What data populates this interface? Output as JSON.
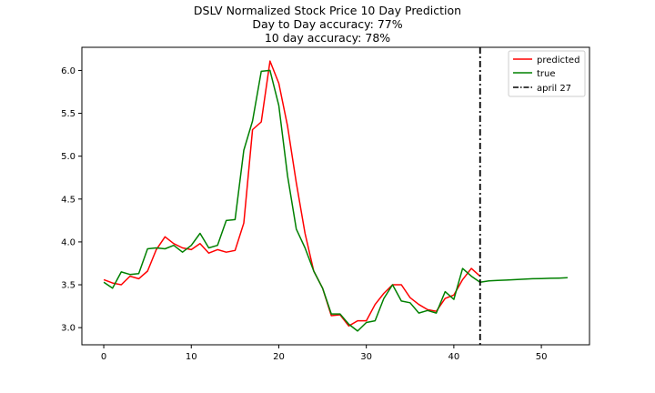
{
  "chart_data": {
    "type": "line",
    "title_lines": [
      "DSLV Normalized Stock Price 10 Day Prediction",
      "Day to Day accuracy: 77%",
      "10 day accuracy: 78%"
    ],
    "xlim": [
      -2.5,
      55.5
    ],
    "ylim": [
      2.8,
      6.27
    ],
    "x_ticks": [
      0,
      10,
      20,
      30,
      40,
      50
    ],
    "y_ticks": [
      3.0,
      3.5,
      4.0,
      4.5,
      5.0,
      5.5,
      6.0
    ],
    "y_tick_labels": [
      "3.0",
      "3.5",
      "4.0",
      "4.5",
      "5.0",
      "5.5",
      "6.0"
    ],
    "grid": false,
    "legend_position": "top-right",
    "series": [
      {
        "name": "predicted",
        "color": "#ff0000",
        "style": "solid",
        "x": [
          0,
          1,
          2,
          3,
          4,
          5,
          6,
          7,
          8,
          9,
          10,
          11,
          12,
          13,
          14,
          15,
          16,
          17,
          18,
          19,
          20,
          21,
          22,
          23,
          24,
          25,
          26,
          27,
          28,
          29,
          30,
          31,
          32,
          33,
          34,
          35,
          36,
          37,
          38,
          39,
          40,
          41,
          42,
          43
        ],
        "y": [
          3.56,
          3.52,
          3.5,
          3.6,
          3.57,
          3.66,
          3.91,
          4.06,
          3.98,
          3.93,
          3.91,
          3.98,
          3.87,
          3.91,
          3.88,
          3.9,
          4.22,
          5.31,
          5.4,
          6.11,
          5.85,
          5.35,
          4.69,
          4.1,
          3.66,
          3.46,
          3.14,
          3.15,
          3.02,
          3.08,
          3.08,
          3.27,
          3.4,
          3.5,
          3.5,
          3.35,
          3.27,
          3.21,
          3.19,
          3.34,
          3.38,
          3.56,
          3.69,
          3.6
        ]
      },
      {
        "name": "true",
        "color": "#008000",
        "style": "solid",
        "x": [
          0,
          1,
          2,
          3,
          4,
          5,
          6,
          7,
          8,
          9,
          10,
          11,
          12,
          13,
          14,
          15,
          16,
          17,
          18,
          19,
          20,
          21,
          22,
          23,
          24,
          25,
          26,
          27,
          28,
          29,
          30,
          31,
          32,
          33,
          34,
          35,
          36,
          37,
          38,
          39,
          40,
          41,
          42,
          43,
          44,
          45,
          46,
          47,
          48,
          49,
          50,
          51,
          52,
          53
        ],
        "y": [
          3.53,
          3.46,
          3.65,
          3.62,
          3.63,
          3.92,
          3.93,
          3.92,
          3.96,
          3.88,
          3.96,
          4.1,
          3.93,
          3.96,
          4.25,
          4.26,
          5.07,
          5.41,
          5.99,
          6.0,
          5.59,
          4.77,
          4.15,
          3.93,
          3.66,
          3.46,
          3.16,
          3.16,
          3.04,
          2.96,
          3.06,
          3.08,
          3.34,
          3.5,
          3.31,
          3.29,
          3.17,
          3.2,
          3.17,
          3.42,
          3.33,
          3.69,
          3.6,
          3.53,
          3.545,
          3.55,
          3.555,
          3.56,
          3.565,
          3.57,
          3.573,
          3.576,
          3.578,
          3.582
        ]
      }
    ],
    "vline": {
      "name": "april 27",
      "x": 43,
      "color": "#000000",
      "style": "dashdot"
    }
  }
}
